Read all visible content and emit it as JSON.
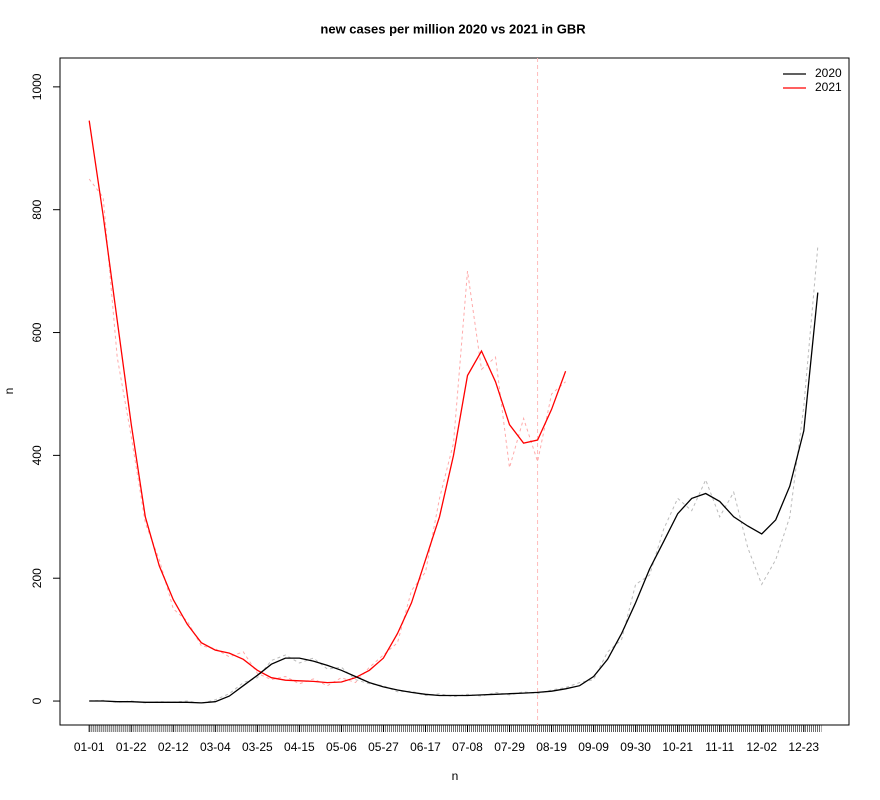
{
  "chart_data": {
    "type": "line",
    "title": "new cases per million 2020 vs 2021 in GBR",
    "x_label": "n",
    "y_label": "n",
    "x": [
      0,
      7,
      14,
      21,
      28,
      35,
      42,
      49,
      56,
      63,
      70,
      77,
      84,
      91,
      98,
      105,
      112,
      119,
      126,
      133,
      140,
      147,
      154,
      161,
      168,
      175,
      182,
      189,
      196,
      203,
      210,
      217,
      224,
      231,
      238,
      245,
      252,
      259,
      266,
      273,
      280,
      287,
      294,
      301,
      308,
      315,
      322,
      329,
      336,
      343,
      350,
      357,
      364
    ],
    "series": [
      {
        "name": "2020",
        "color": "#000000",
        "values": [
          0,
          0,
          -1,
          -1,
          -2,
          -2,
          -2,
          -2,
          -3,
          -1,
          8,
          25,
          42,
          60,
          70,
          70,
          65,
          58,
          50,
          40,
          30,
          23,
          18,
          14,
          11,
          9,
          9,
          9,
          10,
          11,
          12,
          13,
          14,
          16,
          20,
          25,
          40,
          68,
          110,
          160,
          215,
          260,
          305,
          330,
          338,
          325,
          300,
          285,
          272,
          295,
          350,
          440,
          665
        ]
      },
      {
        "name": "2021",
        "color": "#ff0000",
        "values": [
          945,
          790,
          620,
          450,
          300,
          220,
          165,
          125,
          95,
          83,
          78,
          68,
          50,
          38,
          34,
          33,
          32,
          30,
          31,
          38,
          50,
          70,
          110,
          160,
          230,
          300,
          400,
          530,
          570,
          520,
          450,
          420,
          425,
          475,
          537,
          null,
          null,
          null,
          null,
          null,
          null,
          null,
          null,
          null,
          null,
          null,
          null,
          null,
          null,
          null,
          null,
          null,
          null
        ]
      },
      {
        "color": "#bbbbbb",
        "dashed": true,
        "values": [
          0,
          1,
          -2,
          0,
          -3,
          -1,
          -2,
          0,
          -4,
          2,
          12,
          30,
          38,
          66,
          75,
          62,
          70,
          52,
          55,
          35,
          28,
          25,
          15,
          16,
          9,
          12,
          7,
          11,
          8,
          14,
          10,
          15,
          12,
          18,
          22,
          30,
          35,
          80,
          100,
          190,
          205,
          280,
          330,
          310,
          360,
          300,
          340,
          250,
          190,
          230,
          300,
          480,
          740
        ]
      },
      {
        "color": "#ffaaaa",
        "dashed": true,
        "values": [
          850,
          820,
          560,
          430,
          290,
          230,
          150,
          130,
          90,
          85,
          72,
          80,
          45,
          35,
          40,
          28,
          36,
          25,
          38,
          30,
          55,
          75,
          95,
          180,
          210,
          330,
          420,
          700,
          540,
          560,
          380,
          460,
          390,
          500,
          520,
          null,
          null,
          null,
          null,
          null,
          null,
          null,
          null,
          null,
          null,
          null,
          null,
          null,
          null,
          null,
          null,
          null,
          null
        ]
      }
    ],
    "xlim": [
      -14.6,
      379.6
    ],
    "xticks": [
      {
        "value": 0,
        "label": "01-01"
      },
      {
        "value": 21,
        "label": "01-22"
      },
      {
        "value": 42,
        "label": "02-12"
      },
      {
        "value": 63,
        "label": "03-04"
      },
      {
        "value": 84,
        "label": "03-25"
      },
      {
        "value": 105,
        "label": "04-15"
      },
      {
        "value": 126,
        "label": "05-06"
      },
      {
        "value": 147,
        "label": "05-27"
      },
      {
        "value": 168,
        "label": "06-17"
      },
      {
        "value": 189,
        "label": "07-08"
      },
      {
        "value": 210,
        "label": "07-29"
      },
      {
        "value": 231,
        "label": "08-19"
      },
      {
        "value": 252,
        "label": "09-09"
      },
      {
        "value": 273,
        "label": "09-30"
      },
      {
        "value": 294,
        "label": "10-21"
      },
      {
        "value": 315,
        "label": "11-11"
      },
      {
        "value": 336,
        "label": "12-02"
      },
      {
        "value": 357,
        "label": "12-23"
      }
    ],
    "ylim": [
      -39,
      1047
    ],
    "yticks": [
      0,
      200,
      400,
      600,
      800,
      1000
    ],
    "vline": 224,
    "vline_color": "#ffbbbb",
    "legend": "topright"
  }
}
